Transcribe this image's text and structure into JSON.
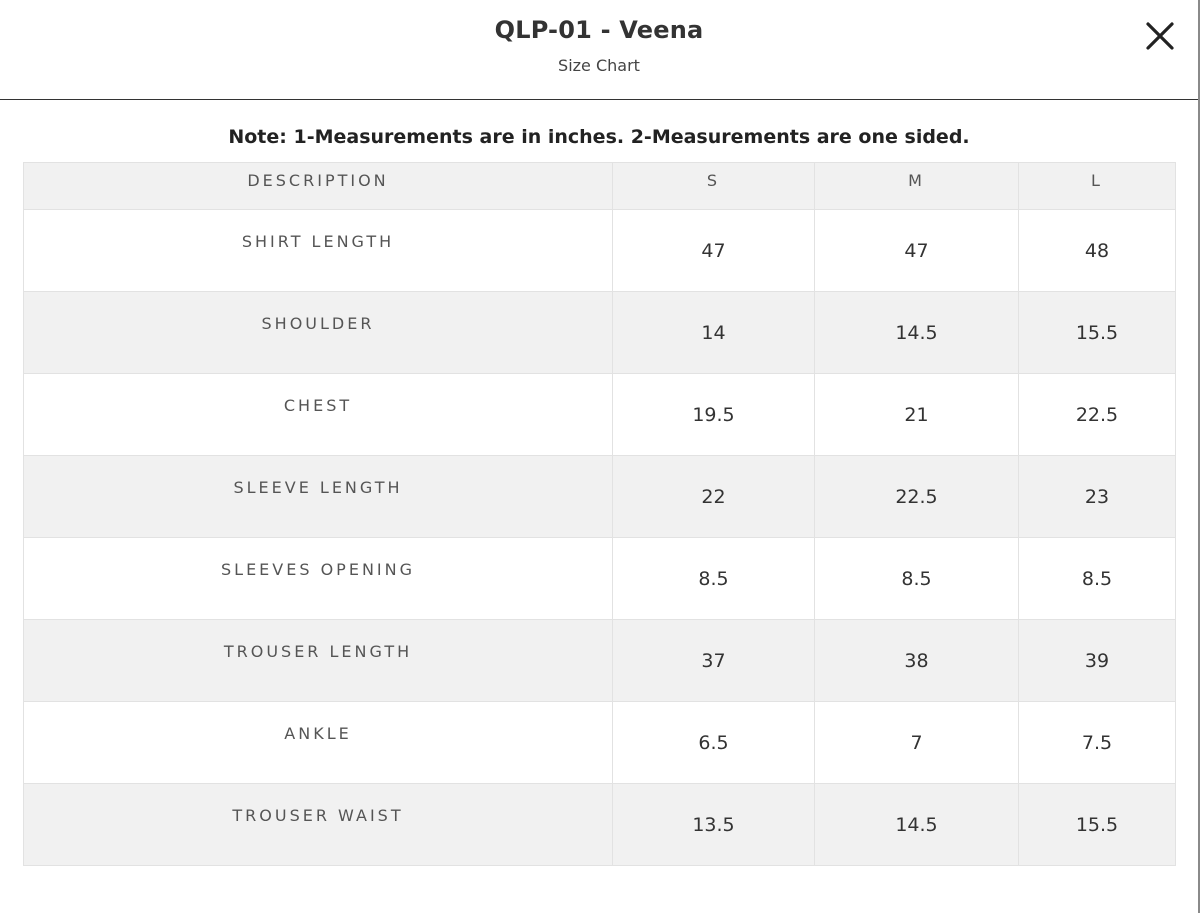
{
  "header": {
    "title": "QLP-01 - Veena",
    "subtitle": "Size Chart",
    "close_icon": "close-icon"
  },
  "note": "Note: 1-Measurements are in inches. 2-Measurements are one sided.",
  "table": {
    "columns": [
      "DESCRIPTION",
      "S",
      "M",
      "L"
    ],
    "rows": [
      {
        "label": "SHIRT LENGTH",
        "s": "47",
        "m": "47",
        "l": "48"
      },
      {
        "label": "SHOULDER",
        "s": "14",
        "m": "14.5",
        "l": "15.5"
      },
      {
        "label": "CHEST",
        "s": "19.5",
        "m": "21",
        "l": "22.5"
      },
      {
        "label": "SLEEVE LENGTH",
        "s": "22",
        "m": "22.5",
        "l": "23"
      },
      {
        "label": "SLEEVES OPENING",
        "s": "8.5",
        "m": "8.5",
        "l": "8.5"
      },
      {
        "label": "TROUSER LENGTH",
        "s": "37",
        "m": "38",
        "l": "39"
      },
      {
        "label": "ANKLE",
        "s": "6.5",
        "m": "7",
        "l": "7.5"
      },
      {
        "label": "TROUSER WAIST",
        "s": "13.5",
        "m": "14.5",
        "l": "15.5"
      }
    ]
  },
  "colors": {
    "text": "#333333",
    "row_alt": "#f1f1f1",
    "border": "#e2e2e2"
  }
}
